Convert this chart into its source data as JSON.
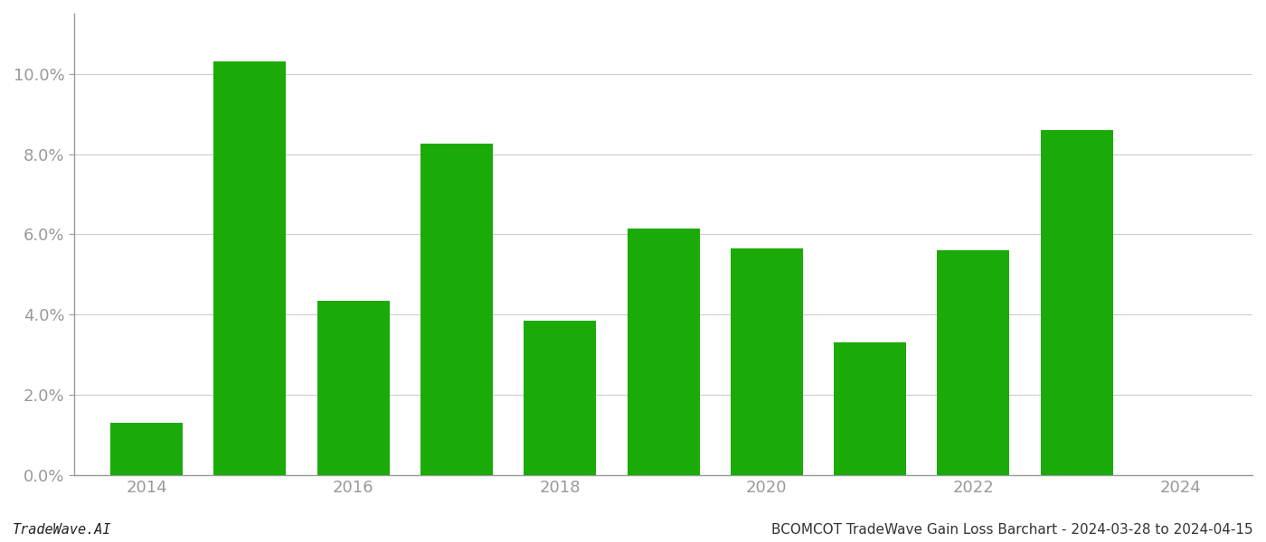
{
  "years": [
    2014,
    2015,
    2016,
    2017,
    2018,
    2019,
    2020,
    2021,
    2022,
    2023
  ],
  "values": [
    0.013,
    0.103,
    0.0435,
    0.0825,
    0.0385,
    0.0615,
    0.0565,
    0.033,
    0.056,
    0.086
  ],
  "bar_color": "#1aab08",
  "background_color": "#ffffff",
  "grid_color": "#cccccc",
  "title": "BCOMCOT TradeWave Gain Loss Barchart - 2024-03-28 to 2024-04-15",
  "watermark": "TradeWave.AI",
  "xlim": [
    2013.3,
    2024.7
  ],
  "ylim": [
    0,
    0.115
  ],
  "yticks": [
    0.0,
    0.02,
    0.04,
    0.06,
    0.08,
    0.1
  ],
  "xticks": [
    2014,
    2016,
    2018,
    2020,
    2022,
    2024
  ],
  "title_fontsize": 11,
  "watermark_fontsize": 11,
  "tick_fontsize": 13,
  "axis_label_color": "#999999",
  "bar_width": 0.7
}
